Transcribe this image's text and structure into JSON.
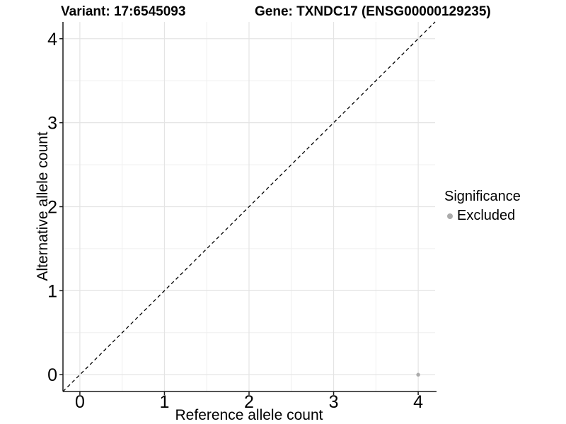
{
  "header": {
    "variant_title": "Variant: 17:6545093",
    "gene_title": "Gene: TXNDC17 (ENSG00000129235)"
  },
  "legend": {
    "title": "Significance",
    "items": [
      {
        "label": "Excluded",
        "color": "#ababab"
      }
    ]
  },
  "chart_data": {
    "type": "scatter",
    "title": "Variant: 17:6545093  |  Gene: TXNDC17 (ENSG00000129235)",
    "xlabel": "Reference allele count",
    "ylabel": "Alternative allele count",
    "xlim": [
      -0.2,
      4.2
    ],
    "ylim": [
      -0.2,
      4.2
    ],
    "xticks": [
      0,
      1,
      2,
      3,
      4
    ],
    "yticks": [
      0,
      1,
      2,
      3,
      4
    ],
    "minor_gridlines": [
      0.5,
      1.5,
      2.5,
      3.5
    ],
    "grid": "major and minor gridlines, axis lines left and bottom only",
    "legend_position": "right",
    "series": [
      {
        "name": "Excluded",
        "color": "#ababab",
        "point_radius": 2.7,
        "points": [
          [
            4,
            0
          ]
        ]
      }
    ],
    "reference_line": {
      "kind": "identity y=x diagonal",
      "style": "dashed",
      "color": "#000000"
    }
  },
  "colors": {
    "background": "#ffffff",
    "axis_line": "#1a1a1a",
    "tick_mark": "#1a1a1a",
    "grid_major": "#e4e4e4",
    "grid_minor": "#efefef",
    "text": "#000000",
    "point_excluded": "#ababab"
  }
}
